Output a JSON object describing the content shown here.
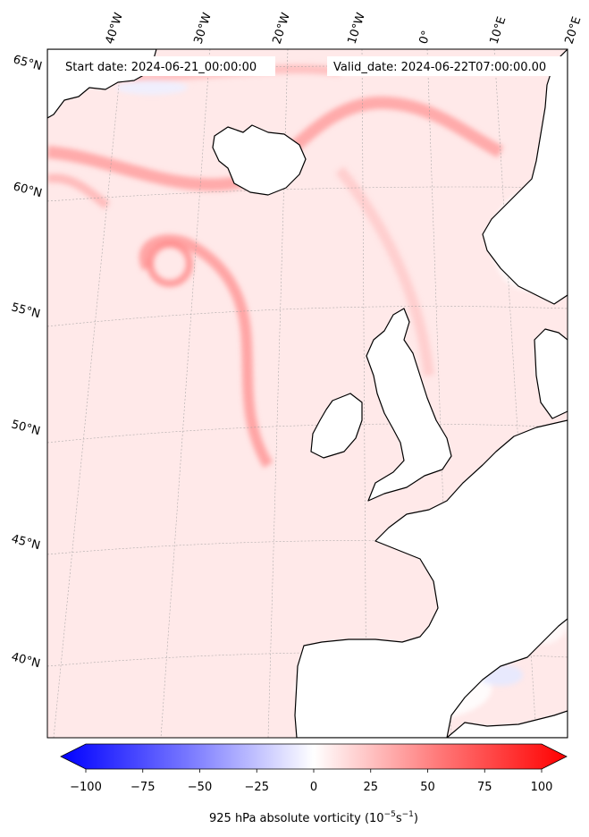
{
  "header": {
    "start_date": "Start date: 2024-06-21_00:00:00",
    "valid_date": "Valid_date: 2024-06-22T07:00:00.00"
  },
  "map": {
    "projection": "lambert-conformal",
    "lon_labels": [
      "40°W",
      "30°W",
      "20°W",
      "10°W",
      "0°",
      "10°E",
      "20°E"
    ],
    "lat_labels": [
      "65°N",
      "60°N",
      "55°N",
      "50°N",
      "45°N",
      "40°N"
    ],
    "gridlines": true,
    "coastlines": true
  },
  "colorbar": {
    "ticks": [
      "−100",
      "−75",
      "−50",
      "−25",
      "0",
      "25",
      "50",
      "75",
      "100"
    ],
    "label_prefix": "925 hPa absolute vorticity (10",
    "label_exp1": "−5",
    "label_mid": "s",
    "label_exp2": "−1",
    "label_suffix": ")",
    "colors": {
      "min": "#0000ff",
      "mid": "#ffffff",
      "max": "#ff0000"
    },
    "extend": "both",
    "range": [
      -100,
      100
    ]
  }
}
